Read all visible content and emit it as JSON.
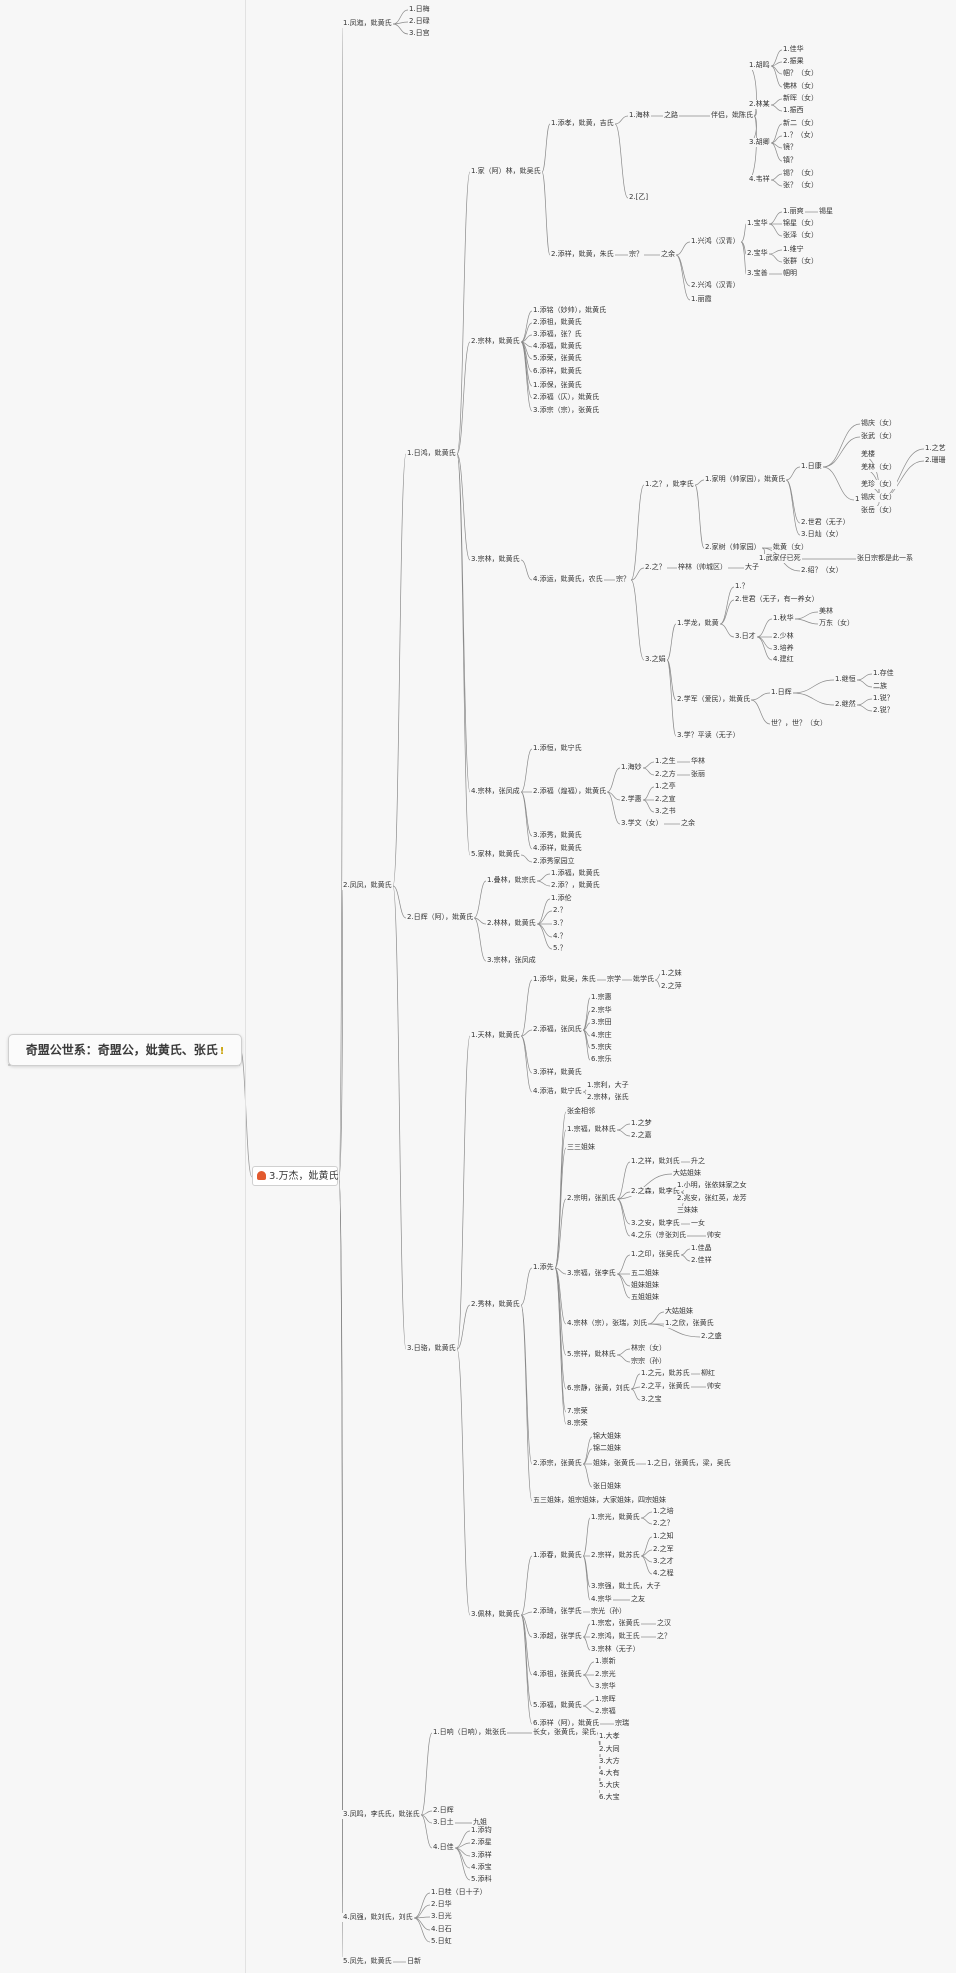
{
  "root": {
    "title": "奇盟公世系：奇盟公，妣黄氏、张氏",
    "badge": "!"
  },
  "main_branch": {
    "label": "3.万杰，妣黄氏"
  },
  "accent": "#e25a2f",
  "nodes": [
    {
      "id": "n1",
      "t": "1.凤迤，妣黄氏"
    },
    {
      "id": "n1a",
      "t": "1.日梅"
    },
    {
      "id": "n1b",
      "t": "2.日碌"
    },
    {
      "id": "n1c",
      "t": "3.日宫"
    },
    {
      "id": "n2",
      "t": "2.凤凤，妣黄氏"
    },
    {
      "id": "n21",
      "t": "1.日鸿，妣黄氏"
    },
    {
      "id": "n211",
      "t": "1.家（阿）林，妣吴氏"
    },
    {
      "id": "n2111",
      "t": "1.添孝，妣黄，吉氏"
    },
    {
      "id": "n2111a",
      "t": "1.海林"
    },
    {
      "id": "n2111b",
      "t": "之路"
    },
    {
      "id": "n2111c",
      "t": "伴侣，妣陈氏"
    },
    {
      "id": "n2111d",
      "t": "2.[乙]"
    },
    {
      "id": "g1",
      "t": "1.胡鸣"
    },
    {
      "id": "g2",
      "t": "2.林某"
    },
    {
      "id": "g3",
      "t": "3.胡卿"
    },
    {
      "id": "g4",
      "t": "4.韦祥"
    },
    {
      "id": "h1",
      "t": "1.佳华"
    },
    {
      "id": "h2",
      "t": "2.振果"
    },
    {
      "id": "h3",
      "t": "帼？（女）"
    },
    {
      "id": "h4",
      "t": "佛林（女）"
    },
    {
      "id": "h5",
      "t": "新晖（女）"
    },
    {
      "id": "h6",
      "t": "1.振西"
    },
    {
      "id": "h7",
      "t": "新二（女）"
    },
    {
      "id": "h8",
      "t": "1.？（女）"
    },
    {
      "id": "h9",
      "t": "镜？"
    },
    {
      "id": "h10",
      "t": "镇？"
    },
    {
      "id": "h11",
      "t": "锡？（女）"
    },
    {
      "id": "h12",
      "t": "张？（女）"
    },
    {
      "id": "n2112",
      "t": "2.添祥，妣黄，朱氏"
    },
    {
      "id": "n2112a",
      "t": "宗？"
    },
    {
      "id": "n2112b",
      "t": "之余"
    },
    {
      "id": "n2112c",
      "t": "1.兴鸿（汉青）"
    },
    {
      "id": "n2112d",
      "t": "2.兴鸿（汉青）"
    },
    {
      "id": "n2112e",
      "t": "1.丽霞"
    },
    {
      "id": "k1",
      "t": "1.宝华"
    },
    {
      "id": "k2",
      "t": "2.宝华"
    },
    {
      "id": "k3",
      "t": "3.宝善"
    },
    {
      "id": "k4",
      "t": "1.丽爽"
    },
    {
      "id": "k5",
      "t": "锡星"
    },
    {
      "id": "k6",
      "t": "锦星（女）"
    },
    {
      "id": "k7",
      "t": "张泽（女）"
    },
    {
      "id": "k8",
      "t": "1.维宁"
    },
    {
      "id": "k9",
      "t": "张群（女）"
    },
    {
      "id": "k10",
      "t": "帼明"
    },
    {
      "id": "n212",
      "t": "2.宗林，妣黄氏"
    },
    {
      "id": "m1",
      "t": "1.添铭（妙帅），妣黄氏"
    },
    {
      "id": "m2",
      "t": "2.添祖，妣黄氏"
    },
    {
      "id": "m3",
      "t": "3.添福，张？氏"
    },
    {
      "id": "m4",
      "t": "4.添福，妣黄氏"
    },
    {
      "id": "m5",
      "t": "5.添荣，张黄氏"
    },
    {
      "id": "m6",
      "t": "6.添祥，妣黄氏"
    },
    {
      "id": "m7",
      "t": "1.添保，张黄氏"
    },
    {
      "id": "m8",
      "t": "2.添福（仄），妣黄氏"
    },
    {
      "id": "m9",
      "t": "3.添宗（宗），张黄氏"
    },
    {
      "id": "n213",
      "t": "3.宗林，妣黄氏"
    },
    {
      "id": "p1",
      "t": "4.添运，妣黄氏，农氏"
    },
    {
      "id": "p2",
      "t": "宗？"
    },
    {
      "id": "p3",
      "t": "1.之？，妣李氏"
    },
    {
      "id": "p4",
      "t": "2.之？"
    },
    {
      "id": "p5",
      "t": "3.之娟"
    },
    {
      "id": "p6",
      "t": "梓林（帅城区）"
    },
    {
      "id": "p7",
      "t": "大子"
    },
    {
      "id": "q1",
      "t": "1.家明（帅家园），妣黄氏"
    },
    {
      "id": "q2",
      "t": "2.家树（帅家园）"
    },
    {
      "id": "q3",
      "t": "妣黄（女）"
    },
    {
      "id": "q4",
      "t": "1.日康"
    },
    {
      "id": "q5",
      "t": "2.世君（无子）"
    },
    {
      "id": "q6",
      "t": "3.日灿（女）"
    },
    {
      "id": "q7",
      "t": "1.楼和"
    },
    {
      "id": "q8",
      "t": "锡庆（女）"
    },
    {
      "id": "q9",
      "t": "张武（女）"
    },
    {
      "id": "q10",
      "t": "1.之艺"
    },
    {
      "id": "q11",
      "t": "2.珊珊"
    },
    {
      "id": "q12",
      "t": "羌楼"
    },
    {
      "id": "q13",
      "t": "羌林（女）"
    },
    {
      "id": "q14",
      "t": "羌珍（女）"
    },
    {
      "id": "q15",
      "t": "锡庆（女）"
    },
    {
      "id": "q16",
      "t": "张岳（女）"
    },
    {
      "id": "q17",
      "t": "1.武家仔已死"
    },
    {
      "id": "q18",
      "t": "2.绍？（女）"
    },
    {
      "id": "q19",
      "t": "张日宗都是此一系"
    },
    {
      "id": "r1",
      "t": "1.学龙，妣黄"
    },
    {
      "id": "r2",
      "t": "2.学军（爱民），妣黄氏"
    },
    {
      "id": "r3",
      "t": "3.学？平读（无子）"
    },
    {
      "id": "r4",
      "t": "1.？"
    },
    {
      "id": "r5",
      "t": "2.世君（无子，有一养女）"
    },
    {
      "id": "r6",
      "t": "3.日才"
    },
    {
      "id": "r7",
      "t": "1.秋华"
    },
    {
      "id": "r8",
      "t": "2.少林"
    },
    {
      "id": "r9",
      "t": "3.培养"
    },
    {
      "id": "r10",
      "t": "4.建红"
    },
    {
      "id": "r11",
      "t": "美林"
    },
    {
      "id": "r12",
      "t": "万东（女）"
    },
    {
      "id": "r13",
      "t": "1.日辉"
    },
    {
      "id": "r14",
      "t": "1.继恒"
    },
    {
      "id": "r15",
      "t": "2.继然"
    },
    {
      "id": "r16",
      "t": "世？，世？（女）"
    },
    {
      "id": "r17",
      "t": "1.存佳"
    },
    {
      "id": "r18",
      "t": "二族"
    },
    {
      "id": "r19",
      "t": "1.锐？"
    },
    {
      "id": "r20",
      "t": "2.锐？"
    },
    {
      "id": "n214",
      "t": "4.宗林，张凤成"
    },
    {
      "id": "s1",
      "t": "1.添恒，妣宁氏"
    },
    {
      "id": "s2",
      "t": "2.添福（煌福），妣黄氏"
    },
    {
      "id": "s3",
      "t": "3.添秀，妣黄氏"
    },
    {
      "id": "s4",
      "t": "4.添祥，妣黄氏"
    },
    {
      "id": "s5",
      "t": "1.海妙"
    },
    {
      "id": "s6",
      "t": "2.学惠"
    },
    {
      "id": "s7",
      "t": "3.学文（女）"
    },
    {
      "id": "s8",
      "t": "之余"
    },
    {
      "id": "s9",
      "t": "1.之生"
    },
    {
      "id": "s10",
      "t": "2.之方"
    },
    {
      "id": "s11",
      "t": "1.之亭"
    },
    {
      "id": "s12",
      "t": "2.之宣"
    },
    {
      "id": "s13",
      "t": "3.之书"
    },
    {
      "id": "s14",
      "t": "华林"
    },
    {
      "id": "s15",
      "t": "张丽"
    },
    {
      "id": "n215",
      "t": "5.家林，妣黄氏"
    },
    {
      "id": "n215a",
      "t": "2.添秀家园立"
    },
    {
      "id": "n22",
      "t": "2.日辉（阿），妣黄氏"
    },
    {
      "id": "t1",
      "t": "1.叠林，妣宗氏"
    },
    {
      "id": "t2",
      "t": "2.林林，妣黄氏"
    },
    {
      "id": "t3",
      "t": "3.宗林，张凤成"
    },
    {
      "id": "t4",
      "t": "1.添福，妣黄氏"
    },
    {
      "id": "t5",
      "t": "2.添？，妣黄氏"
    },
    {
      "id": "t6",
      "t": "1.添伦"
    },
    {
      "id": "t7",
      "t": "2.？"
    },
    {
      "id": "t8",
      "t": "3.？"
    },
    {
      "id": "t9",
      "t": "4.？"
    },
    {
      "id": "t10",
      "t": "5.？"
    },
    {
      "id": "n23",
      "t": "3.日骆，妣黄氏"
    },
    {
      "id": "u1",
      "t": "1.天林，妣黄氏"
    },
    {
      "id": "u2",
      "t": "1.添华，妣吴，朱氏"
    },
    {
      "id": "u3",
      "t": "宗学"
    },
    {
      "id": "u4",
      "t": "妣学氏"
    },
    {
      "id": "u5",
      "t": "1.之妹"
    },
    {
      "id": "u6",
      "t": "2.之萍"
    },
    {
      "id": "u7",
      "t": "2.添福，张凤氏"
    },
    {
      "id": "u8",
      "t": "1.宗惠"
    },
    {
      "id": "u9",
      "t": "2.宗华"
    },
    {
      "id": "u10",
      "t": "3.宗田"
    },
    {
      "id": "u11",
      "t": "4.宗庄"
    },
    {
      "id": "u12",
      "t": "5.宗庆"
    },
    {
      "id": "u13",
      "t": "6.宗乐"
    },
    {
      "id": "u14",
      "t": "3.添祥，妣黄氏"
    },
    {
      "id": "u15",
      "t": "4.添浩，妣宁氏"
    },
    {
      "id": "u16",
      "t": "1.宗利，大子"
    },
    {
      "id": "u17",
      "t": "2.宗林，张氏"
    },
    {
      "id": "v1",
      "t": "2.秀林，妣黄氏"
    },
    {
      "id": "v2",
      "t": "1.添先"
    },
    {
      "id": "v3",
      "t": "张金相邻"
    },
    {
      "id": "v4",
      "t": "1.宗福，妣林氏"
    },
    {
      "id": "v5",
      "t": "1.之梦"
    },
    {
      "id": "v6",
      "t": "2.之嘉"
    },
    {
      "id": "v7",
      "t": "三三姐妹"
    },
    {
      "id": "v8",
      "t": "2.宗明，张凯氏"
    },
    {
      "id": "v9",
      "t": "1.之祥，妣刘氏"
    },
    {
      "id": "v10",
      "t": "升之"
    },
    {
      "id": "v11",
      "t": "大姑姐妹"
    },
    {
      "id": "v12",
      "t": "2.之森，妣李氏"
    },
    {
      "id": "v13",
      "t": "1.小明，张依妹家之女"
    },
    {
      "id": "v14",
      "t": "2.兆安，张红英，龙芳"
    },
    {
      "id": "v15",
      "t": "三妹妹"
    },
    {
      "id": "v16",
      "t": "3.之安，妣李氏"
    },
    {
      "id": "v17",
      "t": "一女"
    },
    {
      "id": "v18",
      "t": "4.之乐（宗）"
    },
    {
      "id": "v19",
      "t": "张刘氏"
    },
    {
      "id": "v20",
      "t": "帅安"
    },
    {
      "id": "v21",
      "t": "3.宗福，张李氏"
    },
    {
      "id": "v22",
      "t": "1.之印，张吴氏"
    },
    {
      "id": "v23",
      "t": "1.佳晶"
    },
    {
      "id": "v24",
      "t": "2.佳祥"
    },
    {
      "id": "v25",
      "t": "五二姐妹"
    },
    {
      "id": "v26",
      "t": "姐妹姐妹"
    },
    {
      "id": "v27",
      "t": "五姐姐妹"
    },
    {
      "id": "v28",
      "t": "4.宗林（宗），张瑞，刘氏"
    },
    {
      "id": "v29",
      "t": "大姑姐妹"
    },
    {
      "id": "v30",
      "t": "1.之欣，张黄氏"
    },
    {
      "id": "v31",
      "t": "2.之盛"
    },
    {
      "id": "v32",
      "t": "5.宗祥，妣林氏"
    },
    {
      "id": "v33",
      "t": "林宗（女）"
    },
    {
      "id": "v34",
      "t": "宗宗（孙）"
    },
    {
      "id": "v35",
      "t": "6.宗静，张黄，刘氏"
    },
    {
      "id": "v36",
      "t": "1.之元，妣苏氏"
    },
    {
      "id": "v37",
      "t": "2.之平，张黄氏"
    },
    {
      "id": "v38",
      "t": "3.之宝"
    },
    {
      "id": "v39",
      "t": "柳红"
    },
    {
      "id": "v40",
      "t": "帅安"
    },
    {
      "id": "v41",
      "t": "7.宗荣"
    },
    {
      "id": "v42",
      "t": "8.宗荣"
    },
    {
      "id": "w1",
      "t": "2.添宗，张黄氏"
    },
    {
      "id": "w2",
      "t": "锦大姐妹"
    },
    {
      "id": "w3",
      "t": "锦二姐妹"
    },
    {
      "id": "w4",
      "t": "姐妹，张黄氏"
    },
    {
      "id": "w5",
      "t": "1.之日，张黄氏，梁，吴氏"
    },
    {
      "id": "w6",
      "t": "张日姐妹"
    },
    {
      "id": "w7",
      "t": "五三姐妹，姐宗姐妹，大家姐妹，四宗姐妹"
    },
    {
      "id": "x1",
      "t": "3.佩林，妣黄氏"
    },
    {
      "id": "x2",
      "t": "1.添春，妣黄氏"
    },
    {
      "id": "x3",
      "t": "1.宗光，妣黄氏"
    },
    {
      "id": "x4",
      "t": "2.宗祥，妣苏氏"
    },
    {
      "id": "x5",
      "t": "3.宗强，妣土氏，大子"
    },
    {
      "id": "x6",
      "t": "4.宗华"
    },
    {
      "id": "x7",
      "t": "之友"
    },
    {
      "id": "x8",
      "t": "1.之培"
    },
    {
      "id": "x9",
      "t": "2.之？"
    },
    {
      "id": "x10",
      "t": "1.之知"
    },
    {
      "id": "x11",
      "t": "2.之军"
    },
    {
      "id": "x12",
      "t": "3.之才"
    },
    {
      "id": "x13",
      "t": "4.之程"
    },
    {
      "id": "x14",
      "t": "2.添琦，张学氏"
    },
    {
      "id": "x15",
      "t": "宗光（孙）"
    },
    {
      "id": "x16",
      "t": "3.添超，张学氏"
    },
    {
      "id": "x17",
      "t": "1.宗宏，张黄氏"
    },
    {
      "id": "x18",
      "t": "之汉"
    },
    {
      "id": "x19",
      "t": "2.宗鸿，妣王氏"
    },
    {
      "id": "x20",
      "t": "之？"
    },
    {
      "id": "x21",
      "t": "3.宗林（无子）"
    },
    {
      "id": "x22",
      "t": "4.添祖，张黄氏"
    },
    {
      "id": "x23",
      "t": "1.崇新"
    },
    {
      "id": "x24",
      "t": "2.宗光"
    },
    {
      "id": "x25",
      "t": "3.宗华"
    },
    {
      "id": "x26",
      "t": "5.添福，妣黄氏"
    },
    {
      "id": "x27",
      "t": "1.宗晖"
    },
    {
      "id": "x28",
      "t": "2.宗福"
    },
    {
      "id": "x29",
      "t": "6.添祥（阿），妣黄氏"
    },
    {
      "id": "x30",
      "t": "宗瑞"
    },
    {
      "id": "n3",
      "t": "3.凤鸣，李氏氏，妣张氏"
    },
    {
      "id": "y1",
      "t": "1.日响（日响），妣张氏"
    },
    {
      "id": "y2",
      "t": "长女，张黄氏，梁氏"
    },
    {
      "id": "y3",
      "t": "1.大孝"
    },
    {
      "id": "y4",
      "t": "2.大同"
    },
    {
      "id": "y5",
      "t": "3.大方"
    },
    {
      "id": "y6",
      "t": "4.大有"
    },
    {
      "id": "y7",
      "t": "5.大庆"
    },
    {
      "id": "y8",
      "t": "6.大宝"
    },
    {
      "id": "y9",
      "t": "2.日辉"
    },
    {
      "id": "y10",
      "t": "3.日土"
    },
    {
      "id": "y11",
      "t": "九姐"
    },
    {
      "id": "y12",
      "t": "4.日佳"
    },
    {
      "id": "y13",
      "t": "1.添钧"
    },
    {
      "id": "y14",
      "t": "2.添星"
    },
    {
      "id": "y15",
      "t": "3.添祥"
    },
    {
      "id": "y16",
      "t": "4.添宝"
    },
    {
      "id": "y17",
      "t": "5.添科"
    },
    {
      "id": "n4",
      "t": "4.凤强，妣刘氏，刘氏"
    },
    {
      "id": "z1",
      "t": "1.日桂（日十子）"
    },
    {
      "id": "z2",
      "t": "2.日华"
    },
    {
      "id": "z3",
      "t": "3.日光"
    },
    {
      "id": "z4",
      "t": "4.日石"
    },
    {
      "id": "z5",
      "t": "5.日虹"
    },
    {
      "id": "n5",
      "t": "5.凤先，妣黄氏"
    },
    {
      "id": "n5a",
      "t": "日新"
    }
  ]
}
